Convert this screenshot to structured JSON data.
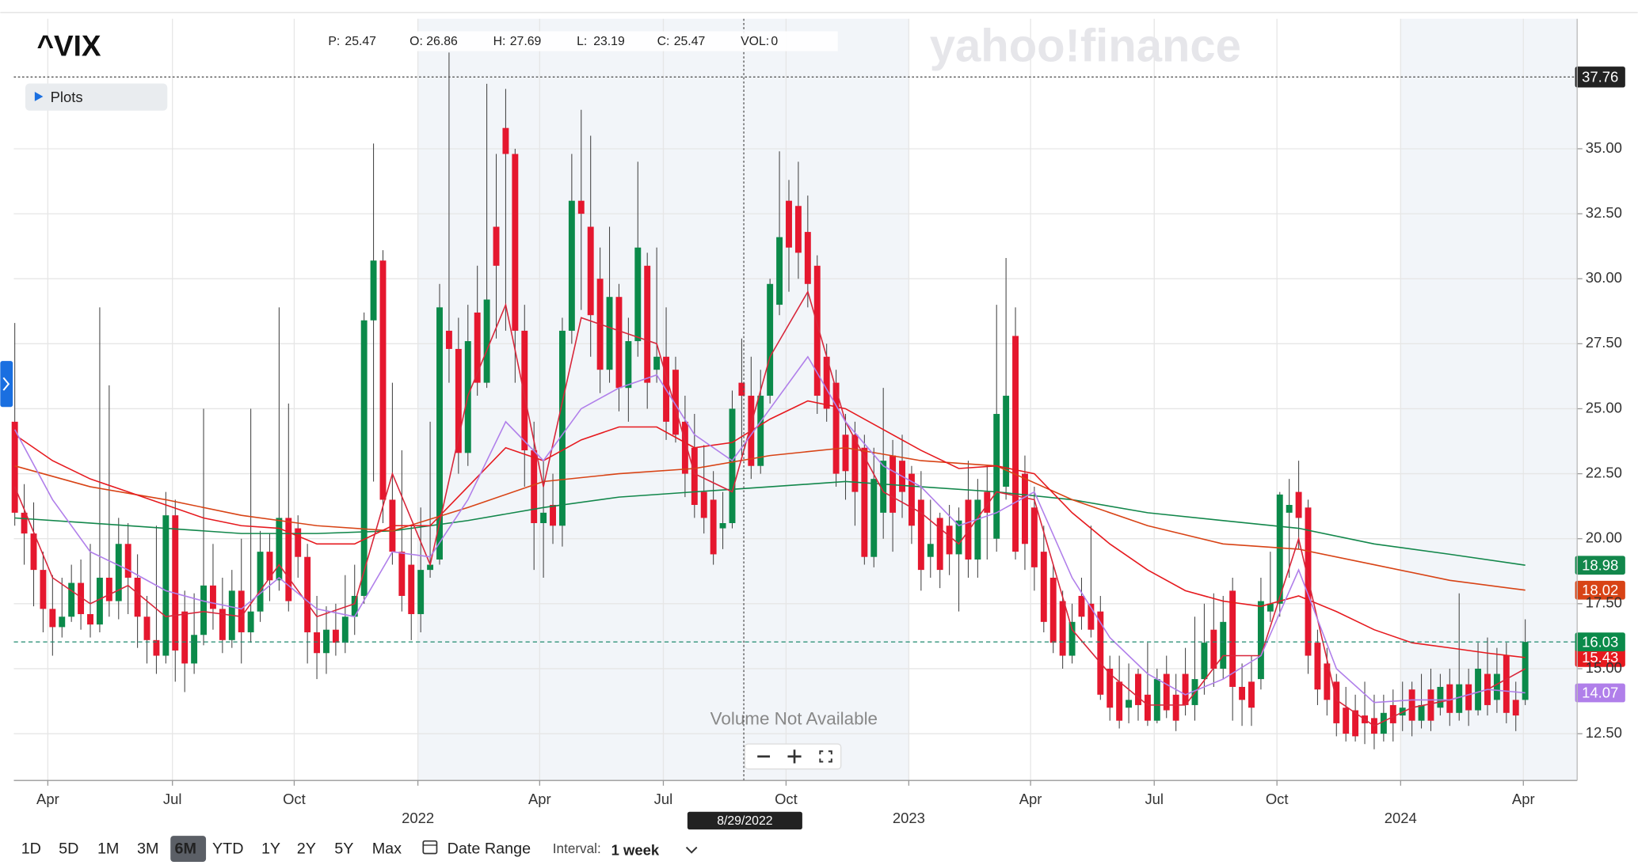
{
  "header": {
    "symbol": "^VIX",
    "ohlc": [
      {
        "label": "P:",
        "value": 25.47
      },
      {
        "label": "O:",
        "value": 26.86
      },
      {
        "label": "H:",
        "value": 27.69
      },
      {
        "label": "L:",
        "value": 23.19
      },
      {
        "label": "C:",
        "value": 25.47
      },
      {
        "label": "VOL:",
        "value": 0
      }
    ],
    "plots": "Plots",
    "watermark": "yahoo!finance",
    "notice": "Volume Not Available"
  },
  "crosshair": {
    "date": "8/29/2022",
    "price": 37.76
  },
  "toolbar": {
    "ranges": [
      "1D",
      "5D",
      "1M",
      "3M",
      "6M",
      "YTD",
      "1Y",
      "2Y",
      "5Y",
      "Max"
    ],
    "selected": "6M",
    "date_range": "Date Range",
    "interval_label": "Interval:",
    "interval": "1 week"
  },
  "chart_data": {
    "type": "candlestick",
    "up_color": "#0b8a4a",
    "down_color": "#e5172e",
    "xlim": [
      -0.1,
      165.5
    ],
    "ylim": [
      10.7,
      40.0
    ],
    "xticks": [
      {
        "value": 3.5,
        "label": "Apr"
      },
      {
        "value": 16.7,
        "label": "Jul"
      },
      {
        "value": 29.6,
        "label": "Oct"
      },
      {
        "value": 42.7,
        "label": "2022"
      },
      {
        "value": 55.6,
        "label": "Apr"
      },
      {
        "value": 68.7,
        "label": "Jul"
      },
      {
        "value": 81.7,
        "label": "Oct"
      },
      {
        "value": 94.7,
        "label": "2023"
      },
      {
        "value": 107.6,
        "label": "Apr"
      },
      {
        "value": 120.7,
        "label": "Jul"
      },
      {
        "value": 133.7,
        "label": "Oct"
      },
      {
        "value": 146.8,
        "label": "2024"
      },
      {
        "value": 159.8,
        "label": "Apr"
      }
    ],
    "yticks": [
      {
        "value": 12.5,
        "label": "12.50"
      },
      {
        "value": 15,
        "label": "15.00"
      },
      {
        "value": 17.5,
        "label": "17.50"
      },
      {
        "value": 20,
        "label": "20.00"
      },
      {
        "value": 22.5,
        "label": "22.50"
      },
      {
        "value": 25,
        "label": "25.00"
      },
      {
        "value": 27.5,
        "label": "27.50"
      },
      {
        "value": 30,
        "label": "30.00"
      },
      {
        "value": 32.5,
        "label": "32.50"
      },
      {
        "value": 35,
        "label": "35.00"
      }
    ],
    "grid": true,
    "open": [
      24.5,
      21.0,
      20.2,
      18.8,
      17.3,
      16.6,
      17.0,
      18.3,
      17.1,
      16.7,
      18.5,
      17.6,
      19.8,
      18.5,
      17.0,
      16.1,
      15.5,
      20.9,
      17.2,
      15.2,
      16.3,
      18.2,
      17.3,
      16.1,
      18.0,
      16.4,
      17.2,
      19.5,
      18.4,
      20.8,
      20.4,
      19.3,
      16.4,
      15.6,
      16.5,
      16.0,
      17.0,
      17.8,
      28.4,
      30.7,
      21.5,
      19.5,
      19.0,
      17.1,
      18.8,
      19.2,
      28.0,
      27.3,
      23.3,
      28.7,
      26.0,
      32.0,
      35.8,
      34.8,
      28.0,
      23.4,
      20.6,
      21.3,
      20.5,
      28.0,
      33.0,
      32.0,
      30.0,
      26.5,
      29.3,
      25.8,
      27.6,
      30.5,
      26.5,
      27.0,
      26.5,
      24.5,
      23.5,
      21.8,
      21.5,
      20.4,
      20.6,
      26.0,
      25.5,
      22.8,
      25.5,
      29.0,
      33.0,
      32.8,
      31.8,
      30.5,
      27.0,
      26.0,
      24.0,
      24.0,
      23.5,
      19.3,
      21.0,
      23.2,
      23.0,
      22.5,
      21.5,
      19.3,
      20.8,
      20.5,
      19.4,
      21.5,
      19.2,
      21.8,
      20.0,
      22.0,
      27.8,
      22.5,
      21.2,
      19.5,
      18.5,
      17.6,
      15.5,
      17.8,
      17.5,
      17.2,
      15.0,
      14.5,
      13.5,
      14.8,
      14.0,
      13.0,
      14.8,
      14.0,
      14.8,
      13.6,
      14.6,
      16.5,
      15.0,
      18.0,
      14.3,
      14.5,
      14.6,
      17.2,
      17.5,
      21.0,
      21.8,
      21.2,
      16.0,
      15.2,
      14.5,
      13.5,
      13.4,
      13.2,
      13.1,
      12.5,
      13.6,
      13.2,
      14.2,
      13.0,
      14.2,
      13.5,
      14.4,
      13.3,
      14.4,
      13.4,
      14.8,
      13.8,
      15.5,
      13.8,
      13.8
    ],
    "high": [
      28.3,
      22.1,
      21.4,
      19.5,
      18.6,
      18.5,
      19.0,
      19.2,
      19.8,
      28.9,
      25.9,
      20.8,
      20.6,
      19.4,
      17.8,
      20.5,
      21.8,
      21.5,
      18.0,
      17.9,
      25.0,
      19.8,
      18.5,
      18.8,
      20.0,
      25.0,
      20.3,
      20.2,
      28.9,
      25.2,
      20.9,
      19.8,
      17.8,
      17.4,
      17.5,
      18.6,
      19.0,
      28.7,
      35.2,
      31.1,
      26.0,
      23.4,
      20.5,
      21.2,
      24.5,
      29.8,
      38.7,
      28.5,
      29.0,
      30.5,
      37.5,
      34.8,
      37.3,
      35.0,
      29.0,
      24.5,
      23.0,
      22.5,
      28.5,
      34.8,
      36.5,
      35.5,
      31.2,
      32.0,
      29.8,
      28.5,
      34.5,
      31.0,
      31.2,
      28.9,
      27.0,
      25.5,
      24.8,
      23.6,
      22.6,
      21.8,
      25.7,
      27.7,
      27.0,
      26.5,
      30.0,
      34.9,
      33.8,
      34.5,
      33.2,
      30.9,
      27.5,
      26.5,
      24.8,
      24.5,
      24.0,
      23.5,
      25.8,
      23.8,
      24.0,
      22.8,
      22.6,
      21.5,
      21.0,
      21.3,
      21.2,
      23.0,
      22.3,
      22.8,
      29.0,
      30.8,
      28.9,
      23.2,
      22.0,
      20.5,
      19.0,
      18.0,
      17.5,
      18.5,
      20.5,
      17.8,
      15.5,
      15.5,
      15.2,
      15.0,
      16.0,
      15.0,
      15.5,
      14.8,
      15.8,
      17.0,
      17.5,
      17.9,
      17.8,
      18.5,
      15.2,
      15.5,
      18.5,
      19.5,
      21.8,
      22.3,
      23.0,
      21.5,
      16.5,
      15.8,
      14.8,
      14.3,
      14.0,
      14.5,
      14.0,
      14.0,
      14.2,
      14.5,
      14.5,
      14.8,
      15.0,
      14.8,
      15.0,
      17.9,
      15.0,
      16.0,
      16.2,
      15.8,
      16.0,
      14.5,
      16.9
    ],
    "low": [
      20.5,
      19.0,
      17.4,
      16.4,
      15.5,
      16.2,
      16.8,
      16.5,
      16.2,
      16.4,
      17.0,
      16.9,
      17.1,
      15.8,
      15.2,
      14.8,
      15.2,
      14.5,
      14.1,
      14.8,
      15.9,
      16.5,
      15.6,
      15.8,
      15.2,
      16.0,
      16.8,
      17.6,
      18.0,
      17.2,
      18.5,
      15.2,
      14.6,
      14.8,
      15.5,
      15.6,
      16.3,
      17.5,
      22.2,
      20.6,
      19.0,
      17.2,
      16.1,
      16.4,
      18.5,
      19.0,
      26.0,
      22.5,
      22.8,
      25.5,
      25.8,
      27.7,
      28.0,
      26.0,
      22.0,
      18.8,
      18.5,
      19.8,
      19.7,
      27.5,
      28.8,
      27.0,
      25.6,
      26.0,
      24.9,
      24.5,
      27.0,
      25.0,
      26.0,
      23.8,
      23.7,
      21.6,
      20.8,
      20.2,
      19.0,
      19.6,
      20.4,
      23.2,
      22.3,
      22.5,
      25.2,
      28.6,
      29.5,
      30.0,
      28.9,
      24.8,
      24.5,
      22.0,
      21.5,
      20.5,
      19.0,
      18.9,
      20.0,
      19.5,
      20.8,
      19.8,
      18.0,
      18.5,
      18.1,
      18.6,
      17.2,
      18.5,
      18.5,
      19.2,
      19.5,
      21.5,
      19.2,
      18.8,
      18.0,
      16.4,
      15.6,
      15.0,
      15.2,
      16.5,
      16.2,
      13.8,
      13.0,
      12.7,
      12.9,
      13.0,
      12.8,
      12.9,
      13.1,
      12.6,
      13.2,
      13.0,
      14.0,
      14.3,
      14.6,
      13.0,
      12.8,
      12.8,
      14.2,
      16.8,
      17.0,
      18.5,
      19.6,
      14.8,
      13.6,
      13.2,
      12.4,
      12.2,
      12.2,
      12.1,
      11.9,
      12.2,
      12.2,
      12.6,
      12.4,
      12.7,
      12.6,
      13.2,
      12.8,
      13.0,
      12.8,
      13.2,
      13.2,
      13.3,
      12.9,
      12.6,
      13.6
    ],
    "close": [
      21.0,
      20.2,
      18.8,
      17.3,
      16.6,
      17.0,
      18.3,
      17.1,
      16.7,
      18.5,
      17.6,
      19.8,
      18.5,
      17.0,
      16.1,
      15.5,
      20.9,
      15.7,
      15.2,
      16.3,
      18.2,
      17.3,
      16.1,
      18.0,
      16.4,
      17.2,
      19.5,
      18.4,
      20.8,
      17.6,
      19.3,
      16.4,
      15.6,
      16.5,
      16.0,
      17.0,
      17.8,
      28.4,
      30.7,
      21.5,
      19.5,
      17.8,
      17.1,
      18.8,
      19.0,
      28.9,
      27.3,
      23.3,
      27.6,
      26.0,
      29.2,
      30.5,
      34.8,
      28.0,
      23.4,
      20.6,
      21.0,
      20.5,
      28.0,
      33.0,
      32.5,
      28.6,
      26.5,
      29.3,
      25.8,
      27.6,
      31.2,
      26.0,
      27.0,
      24.5,
      24.0,
      22.5,
      21.3,
      20.8,
      19.4,
      20.6,
      25.0,
      25.5,
      22.8,
      25.5,
      29.8,
      31.6,
      31.2,
      31.0,
      29.8,
      25.5,
      25.0,
      22.5,
      22.6,
      21.8,
      19.3,
      22.3,
      23.0,
      21.0,
      21.8,
      20.5,
      18.8,
      19.8,
      18.8,
      19.4,
      20.7,
      19.2,
      21.5,
      21.0,
      24.8,
      25.5,
      19.5,
      19.8,
      18.9,
      16.8,
      16.0,
      15.5,
      16.8,
      17.0,
      16.5,
      14.0,
      13.5,
      13.0,
      13.8,
      13.6,
      13.0,
      14.6,
      13.4,
      13.0,
      13.6,
      14.6,
      16.0,
      15.0,
      16.8,
      14.3,
      13.8,
      13.5,
      17.6,
      17.5,
      21.7,
      21.3,
      20.8,
      15.5,
      14.2,
      13.8,
      12.9,
      12.5,
      12.4,
      12.9,
      12.5,
      13.3,
      12.9,
      13.5,
      13.0,
      13.6,
      13.0,
      14.3,
      13.3,
      14.4,
      13.4,
      15.0,
      13.6,
      14.8,
      13.3,
      13.2,
      16.03
    ],
    "price_line_color": "#1f8a6e",
    "series": [
      {
        "color": "#12874b",
        "badge": true,
        "x": [
          0,
          8,
          16,
          24,
          32,
          40,
          48,
          56,
          64,
          72,
          80,
          88,
          96,
          104,
          112,
          120,
          128,
          136,
          144,
          152,
          160
        ],
        "values": [
          20.8,
          20.6,
          20.4,
          20.2,
          20.2,
          20.3,
          20.7,
          21.2,
          21.6,
          21.8,
          22.0,
          22.2,
          22.0,
          21.8,
          21.5,
          21.0,
          20.7,
          20.4,
          19.8,
          19.4,
          18.98
        ]
      },
      {
        "color": "#d84315",
        "badge": true,
        "x": [
          0,
          8,
          16,
          24,
          32,
          40,
          48,
          56,
          64,
          72,
          80,
          88,
          96,
          104,
          112,
          120,
          128,
          136,
          144,
          152,
          160
        ],
        "values": [
          22.8,
          22.0,
          21.5,
          20.9,
          20.5,
          20.3,
          21.2,
          22.2,
          22.5,
          22.7,
          23.2,
          23.5,
          23.0,
          22.8,
          21.5,
          20.5,
          19.8,
          19.6,
          19.0,
          18.4,
          18.02
        ]
      },
      {
        "color": "#e6191e",
        "badge": true,
        "x": [
          0,
          4,
          8,
          12,
          16,
          20,
          24,
          28,
          32,
          36,
          40,
          44,
          48,
          52,
          56,
          60,
          64,
          68,
          72,
          76,
          80,
          84,
          88,
          92,
          96,
          100,
          104,
          108,
          112,
          116,
          120,
          124,
          128,
          132,
          136,
          140,
          144,
          148,
          152,
          156,
          160
        ],
        "values": [
          24.0,
          23.0,
          22.3,
          21.8,
          21.3,
          20.8,
          20.5,
          20.4,
          19.8,
          19.8,
          20.5,
          20.5,
          22.0,
          23.5,
          23.0,
          23.8,
          24.3,
          24.3,
          23.5,
          23.7,
          24.6,
          25.3,
          25.0,
          24.2,
          23.4,
          22.7,
          22.8,
          22.5,
          21.0,
          19.8,
          18.8,
          18.0,
          17.6,
          17.4,
          17.8,
          17.2,
          16.5,
          16.0,
          15.8,
          15.6,
          15.43
        ]
      },
      {
        "color": "#d8263a",
        "badge": false,
        "x": [
          0,
          4,
          8,
          12,
          16,
          20,
          24,
          28,
          32,
          36,
          40,
          44,
          48,
          52,
          56,
          60,
          64,
          68,
          72,
          76,
          80,
          84,
          88,
          92,
          96,
          100,
          104,
          108,
          112,
          116,
          120,
          124,
          128,
          132,
          136,
          140,
          144,
          148,
          152,
          156,
          160
        ],
        "values": [
          22.0,
          18.5,
          17.5,
          18.2,
          17.0,
          17.2,
          17.0,
          19.0,
          17.0,
          17.5,
          22.5,
          19.0,
          25.5,
          29.0,
          22.0,
          28.5,
          28.0,
          27.5,
          22.5,
          21.8,
          27.0,
          29.5,
          24.5,
          21.8,
          21.0,
          19.8,
          21.8,
          21.5,
          16.5,
          14.8,
          13.6,
          13.6,
          15.5,
          15.5,
          20.0,
          13.8,
          12.8,
          13.5,
          13.8,
          14.2,
          15.0
        ]
      },
      {
        "color": "#b07fea",
        "badge": true,
        "x": [
          0,
          4,
          8,
          12,
          16,
          20,
          24,
          28,
          32,
          36,
          40,
          44,
          48,
          52,
          56,
          60,
          64,
          68,
          72,
          76,
          80,
          84,
          88,
          92,
          96,
          100,
          104,
          108,
          112,
          116,
          120,
          124,
          128,
          132,
          136,
          140,
          144,
          148,
          152,
          156,
          160
        ],
        "values": [
          24.2,
          21.5,
          19.5,
          18.8,
          18.0,
          17.6,
          17.3,
          18.5,
          17.3,
          17.0,
          19.5,
          19.3,
          21.5,
          24.5,
          23.0,
          25.0,
          25.8,
          26.3,
          24.0,
          23.0,
          25.0,
          27.0,
          24.5,
          22.8,
          22.0,
          20.5,
          21.0,
          21.8,
          18.5,
          16.2,
          14.8,
          14.0,
          14.6,
          15.5,
          18.8,
          15.0,
          13.7,
          13.8,
          13.8,
          14.2,
          14.07
        ]
      }
    ]
  }
}
